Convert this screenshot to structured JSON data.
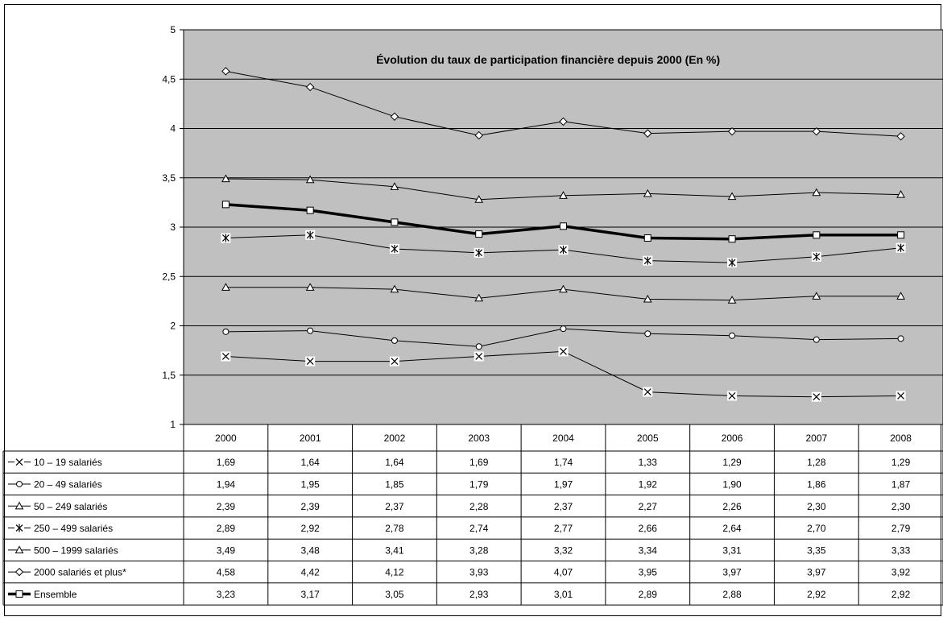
{
  "chart_data": {
    "type": "line",
    "title": "Évolution du taux de participation financière depuis 2000 (En %)",
    "xlabel": "",
    "ylabel": "",
    "ylim": [
      1,
      5
    ],
    "y_ticks": [
      "1",
      "1,5",
      "2",
      "2,5",
      "3",
      "3,5",
      "4",
      "4,5",
      "5"
    ],
    "categories": [
      "2000",
      "2001",
      "2002",
      "2003",
      "2004",
      "2005",
      "2006",
      "2007",
      "2008"
    ],
    "grid": true,
    "plot_background": "#c0c0c0",
    "legend": "data-table-below",
    "series": [
      {
        "name": "10 – 19 salariés",
        "marker": "x",
        "bold": false,
        "values": [
          1.69,
          1.64,
          1.64,
          1.69,
          1.74,
          1.33,
          1.29,
          1.28,
          1.29
        ],
        "labels": [
          "1,69",
          "1,64",
          "1,64",
          "1,69",
          "1,74",
          "1,33",
          "1,29",
          "1,28",
          "1,29"
        ]
      },
      {
        "name": "20 – 49 salariés",
        "marker": "circle",
        "bold": false,
        "values": [
          1.94,
          1.95,
          1.85,
          1.79,
          1.97,
          1.92,
          1.9,
          1.86,
          1.87
        ],
        "labels": [
          "1,94",
          "1,95",
          "1,85",
          "1,79",
          "1,97",
          "1,92",
          "1,90",
          "1,86",
          "1,87"
        ]
      },
      {
        "name": "50 – 249 salariés",
        "marker": "triangle",
        "bold": false,
        "values": [
          2.39,
          2.39,
          2.37,
          2.28,
          2.37,
          2.27,
          2.26,
          2.3,
          2.3
        ],
        "labels": [
          "2,39",
          "2,39",
          "2,37",
          "2,28",
          "2,37",
          "2,27",
          "2,26",
          "2,30",
          "2,30"
        ]
      },
      {
        "name": "250 – 499 salariés",
        "marker": "star",
        "bold": false,
        "values": [
          2.89,
          2.92,
          2.78,
          2.74,
          2.77,
          2.66,
          2.64,
          2.7,
          2.79
        ],
        "labels": [
          "2,89",
          "2,92",
          "2,78",
          "2,74",
          "2,77",
          "2,66",
          "2,64",
          "2,70",
          "2,79"
        ]
      },
      {
        "name": "500 – 1999 salariés",
        "marker": "triangle",
        "bold": false,
        "values": [
          3.49,
          3.48,
          3.41,
          3.28,
          3.32,
          3.34,
          3.31,
          3.35,
          3.33
        ],
        "labels": [
          "3,49",
          "3,48",
          "3,41",
          "3,28",
          "3,32",
          "3,34",
          "3,31",
          "3,35",
          "3,33"
        ]
      },
      {
        "name": "2000 salariés et plus*",
        "marker": "diamond",
        "bold": false,
        "values": [
          4.58,
          4.42,
          4.12,
          3.93,
          4.07,
          3.95,
          3.97,
          3.97,
          3.92
        ],
        "labels": [
          "4,58",
          "4,42",
          "4,12",
          "3,93",
          "4,07",
          "3,95",
          "3,97",
          "3,97",
          "3,92"
        ]
      },
      {
        "name": "Ensemble",
        "marker": "square",
        "bold": true,
        "values": [
          3.23,
          3.17,
          3.05,
          2.93,
          3.01,
          2.89,
          2.88,
          2.92,
          2.92
        ],
        "labels": [
          "3,23",
          "3,17",
          "3,05",
          "2,93",
          "3,01",
          "2,89",
          "2,88",
          "2,92",
          "2,92"
        ]
      }
    ]
  }
}
